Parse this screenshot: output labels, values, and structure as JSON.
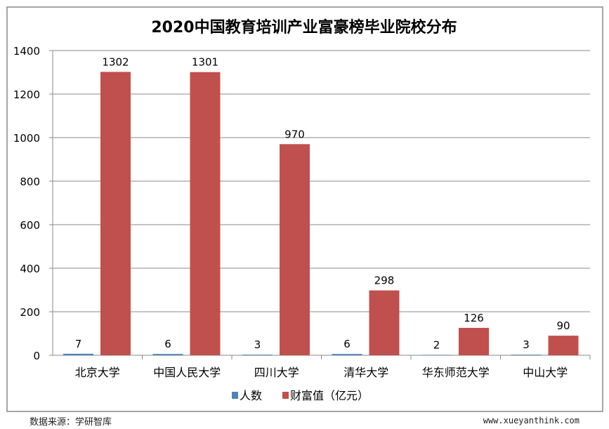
{
  "chart_data": {
    "type": "bar",
    "title": "2020中国教育培训产业富豪榜毕业院校分布",
    "categories": [
      "北京大学",
      "中国人民大学",
      "四川大学",
      "清华大学",
      "华东师范大学",
      "中山大学"
    ],
    "series": [
      {
        "name": "人数",
        "color": "#4f81bd",
        "values": [
          7,
          6,
          3,
          6,
          2,
          3
        ]
      },
      {
        "name": "财富值（亿元）",
        "color": "#c0504d",
        "values": [
          1302,
          1301,
          970,
          298,
          126,
          90
        ]
      }
    ],
    "ylim": [
      0,
      1400
    ],
    "yticks": [
      0,
      200,
      400,
      600,
      800,
      1000,
      1200,
      1400
    ],
    "grid": true,
    "legend": "bottom",
    "xlabel": "",
    "ylabel": ""
  },
  "footer": {
    "source": "数据来源：学研智库",
    "site": "www.xueyanthink.com"
  }
}
